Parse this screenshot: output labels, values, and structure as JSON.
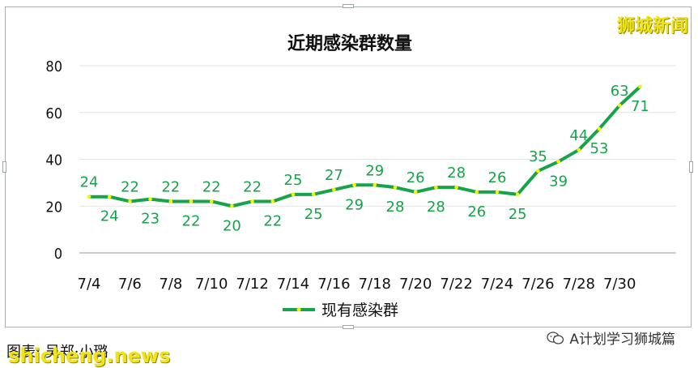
{
  "brand_label": "狮城新闻",
  "credit_text": "图表: 吴郑·小璐",
  "watermark_text": "shicheng.news",
  "account_label": "A计划学习狮城篇",
  "chart_data": {
    "type": "line",
    "title": "近期感染群数量",
    "legend": "top-bottom",
    "legend_label": "现有感染群",
    "line_color": "#17a34a",
    "marker_color": "#f5f500",
    "label_color": "#17a34a",
    "ylim": [
      0,
      80
    ],
    "yticks": [
      "0",
      "20",
      "40",
      "60",
      "80"
    ],
    "grid": true,
    "xtick_labels": [
      "7/4",
      "7/6",
      "7/8",
      "7/10",
      "7/12",
      "7/14",
      "7/16",
      "7/18",
      "7/20",
      "7/22",
      "7/24",
      "7/26",
      "7/28",
      "7/30"
    ],
    "x": [
      "7/4",
      "7/5",
      "7/6",
      "7/7",
      "7/8",
      "7/9",
      "7/10",
      "7/11",
      "7/12",
      "7/13",
      "7/14",
      "7/15",
      "7/16",
      "7/17",
      "7/18",
      "7/19",
      "7/20",
      "7/21",
      "7/22",
      "7/23",
      "7/24",
      "7/25",
      "7/26",
      "7/27",
      "7/28",
      "7/29",
      "7/30",
      "7/31"
    ],
    "series": [
      {
        "name": "现有感染群",
        "values": [
          24,
          24,
          22,
          23,
          22,
          22,
          22,
          20,
          22,
          22,
          25,
          25,
          27,
          29,
          29,
          28,
          26,
          28,
          28,
          26,
          26,
          25,
          35,
          39,
          44,
          53,
          63,
          71
        ]
      }
    ],
    "label_positions": [
      "above",
      "below",
      "above",
      "below",
      "above",
      "below",
      "above",
      "below",
      "above",
      "below",
      "above",
      "below",
      "above",
      "below",
      "above",
      "below",
      "above",
      "below",
      "above",
      "below",
      "above",
      "below",
      "above",
      "below",
      "above",
      "below",
      "above",
      "below"
    ]
  }
}
